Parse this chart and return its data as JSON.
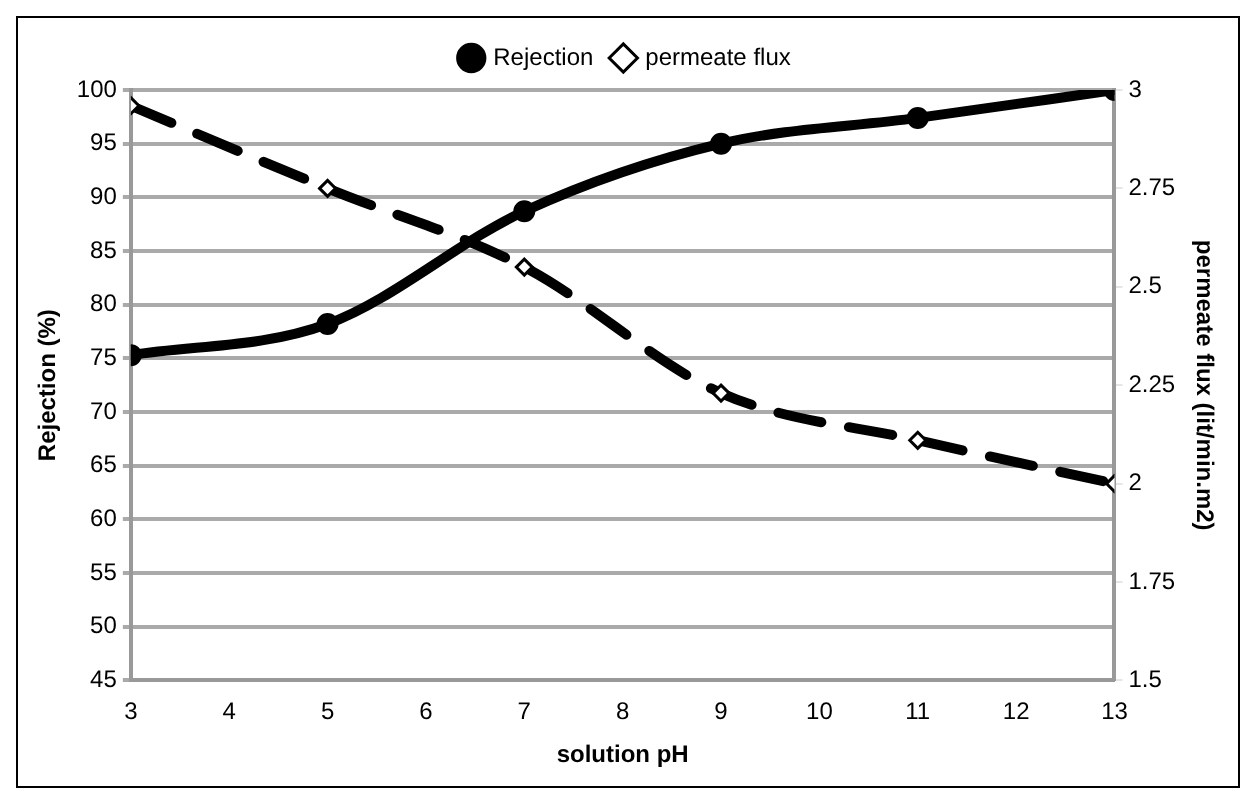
{
  "chart_data": {
    "type": "line",
    "xlabel": "solution pH",
    "ylabel": "Rejection (%)",
    "y2label": "permeate flux (lit/min.m2)",
    "x": [
      3,
      5,
      7,
      9,
      11,
      13
    ],
    "series": [
      {
        "name": "Rejection",
        "color": "#000000",
        "values": [
          75.3,
          78.2,
          88.7,
          95,
          97.4,
          100
        ],
        "marker": "circle",
        "line_style": "solid"
      },
      {
        "name": "permeate flux",
        "color": "#000000",
        "values": [
          2.96,
          2.75,
          2.55,
          2.23,
          2.11,
          2
        ],
        "axis": "y2",
        "marker": "diamond",
        "line_style": "dashed"
      }
    ],
    "xlim": [
      3,
      13
    ],
    "xticks": [
      3,
      4,
      5,
      6,
      7,
      8,
      9,
      10,
      11,
      12,
      13
    ],
    "ylim": [
      45,
      100
    ],
    "yticks": [
      45,
      50,
      55,
      60,
      65,
      70,
      75,
      80,
      85,
      90,
      95,
      100
    ],
    "y2lim": [
      1.5,
      3
    ],
    "y2ticks": [
      1.5,
      1.75,
      2,
      2.25,
      2.5,
      2.75,
      3
    ],
    "grid": "y",
    "legend": "top"
  }
}
